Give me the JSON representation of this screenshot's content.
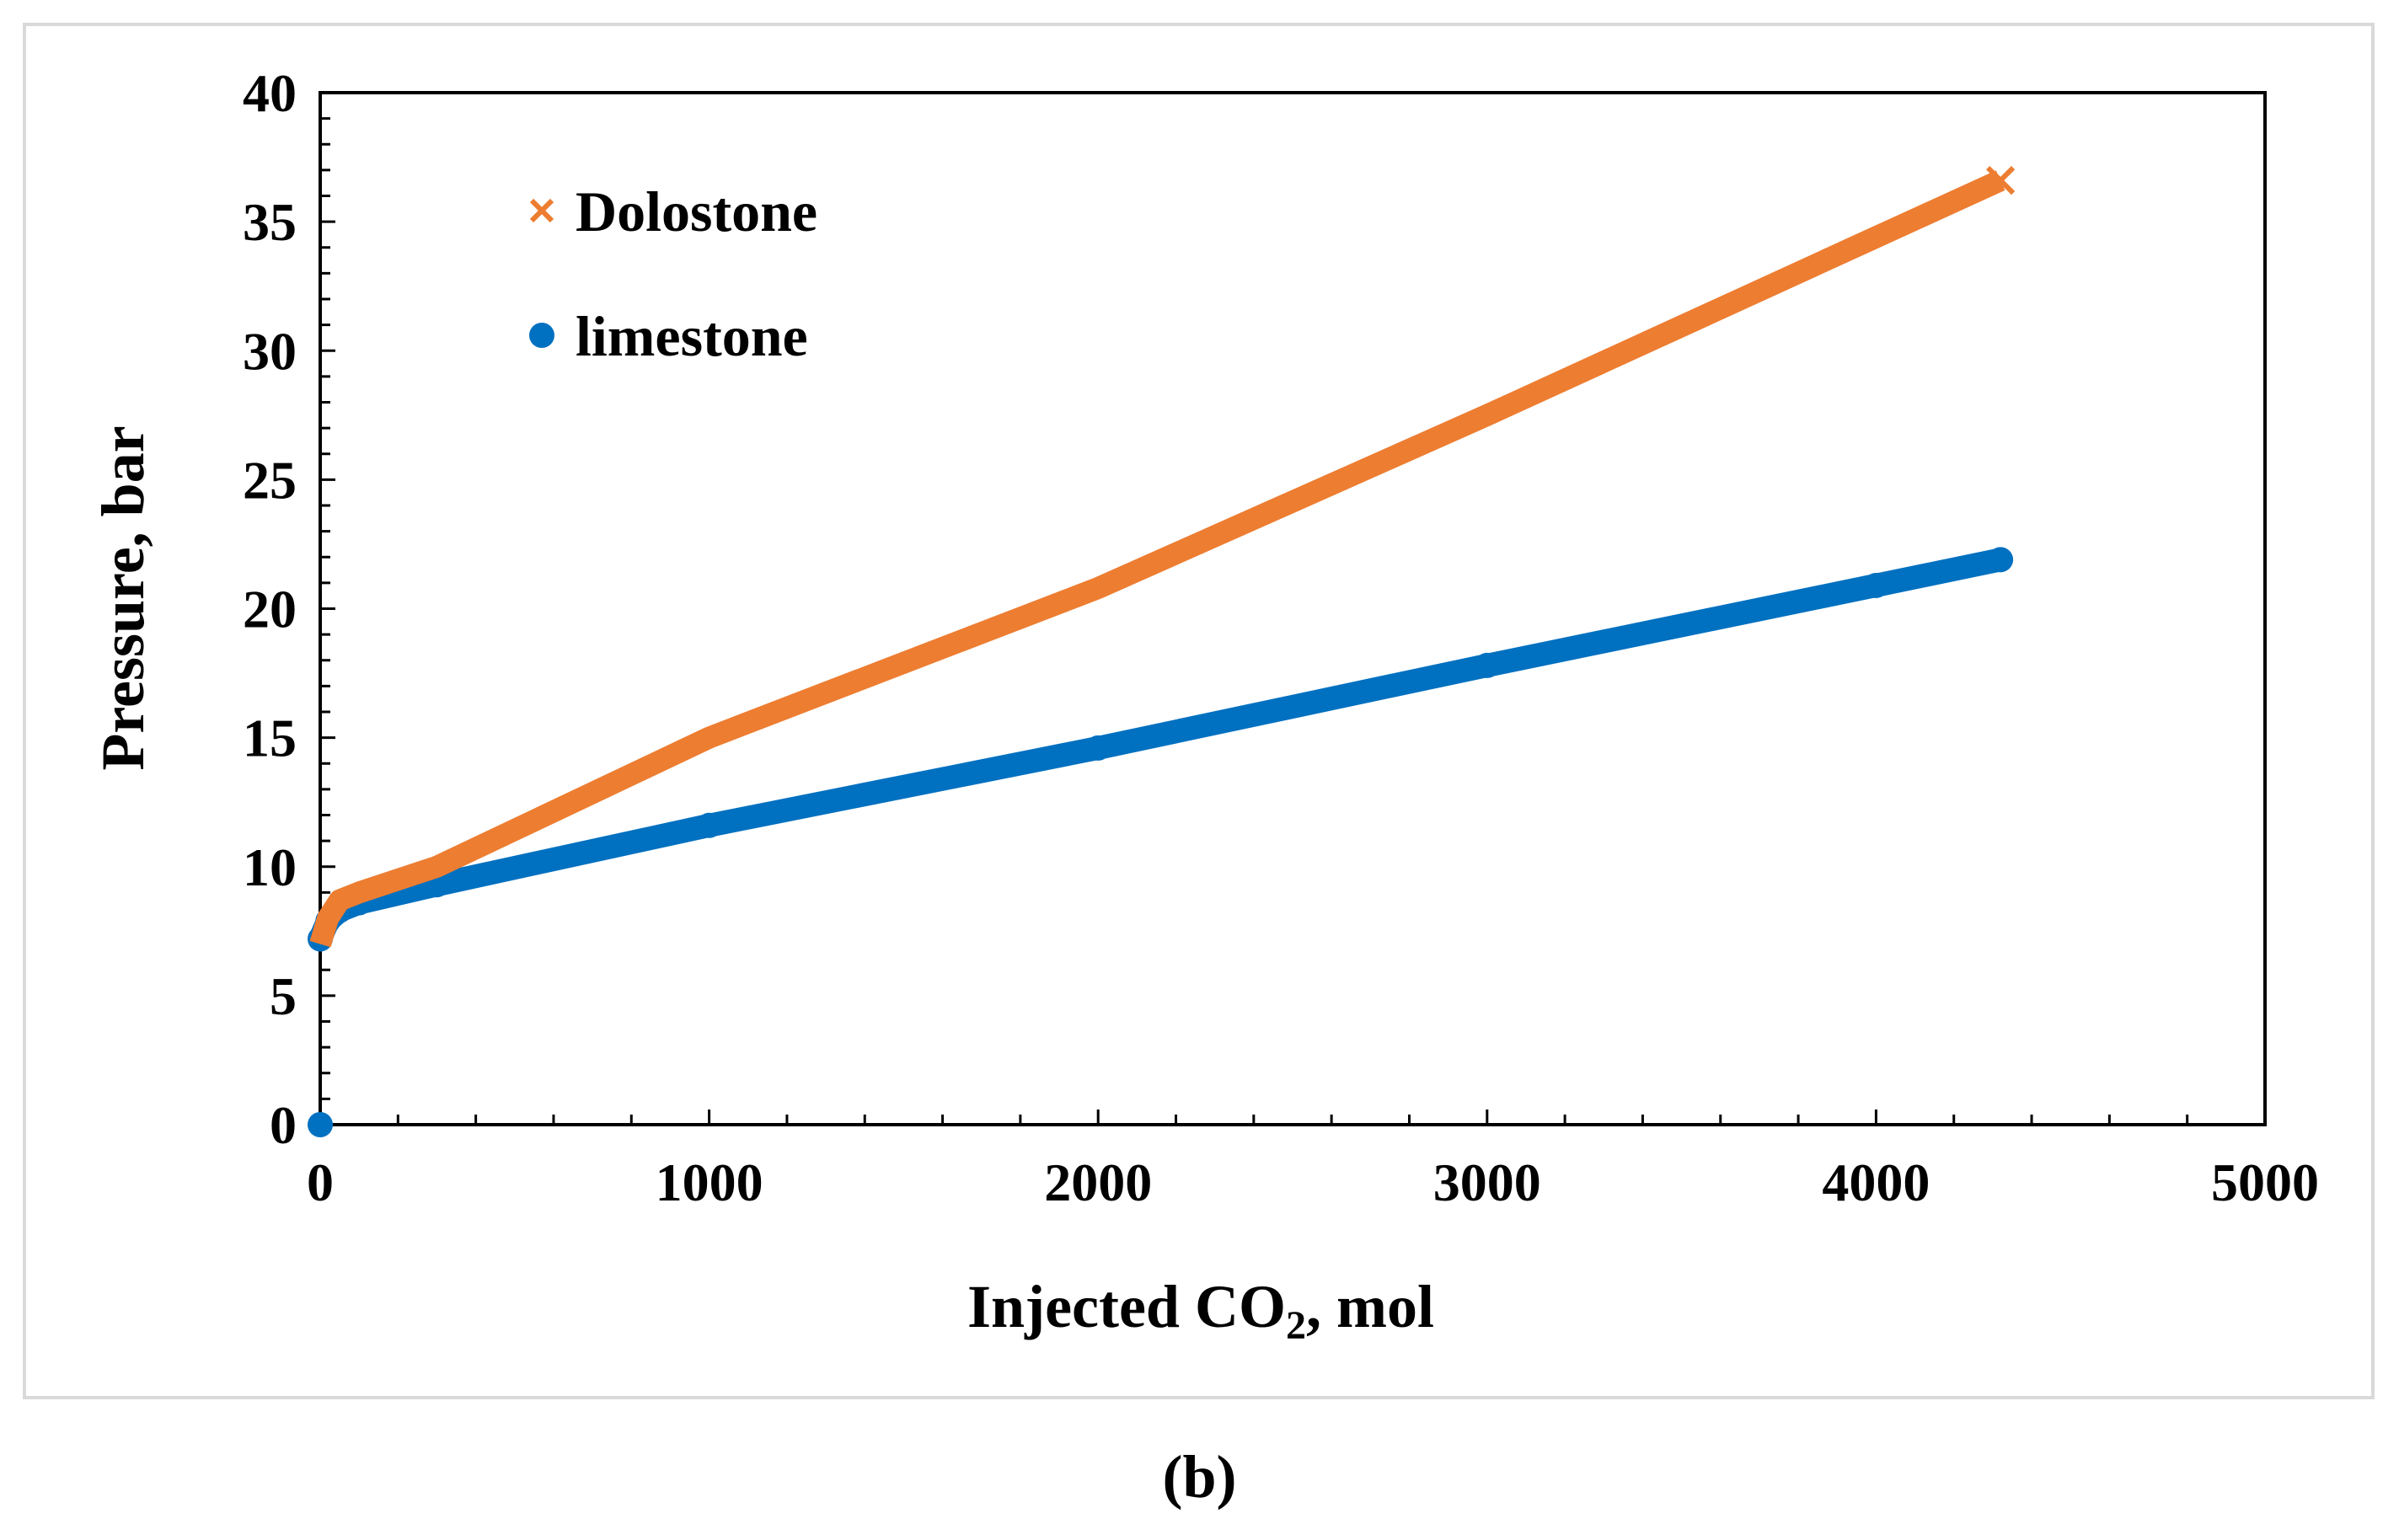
{
  "chart_data": {
    "type": "scatter",
    "title": "",
    "xlabel_main": "Injected CO",
    "xlabel_sub": "2",
    "xlabel_tail": ", mol",
    "ylabel": "Pressure, bar",
    "xlim": [
      0,
      5000
    ],
    "ylim": [
      0,
      40
    ],
    "x_major_ticks": [
      0,
      1000,
      2000,
      3000,
      4000,
      5000
    ],
    "y_major_ticks": [
      0,
      5,
      10,
      15,
      20,
      25,
      30,
      35,
      40
    ],
    "x_minor_step": 200,
    "y_minor_step": 1,
    "grid": false,
    "legend_position": "top-left",
    "series": [
      {
        "name": "Dolostone",
        "marker": "x",
        "color": "#ED7D31",
        "points": [
          [
            0,
            7.0
          ],
          [
            20,
            8.0
          ],
          [
            50,
            8.7
          ],
          [
            100,
            9.0
          ],
          [
            300,
            10.0
          ],
          [
            1000,
            15.0
          ],
          [
            2000,
            20.8
          ],
          [
            3000,
            27.5
          ],
          [
            4000,
            34.4
          ],
          [
            4320,
            36.6
          ]
        ]
      },
      {
        "name": "limestone",
        "marker": "circle",
        "color": "#0070C0",
        "points": [
          [
            0,
            0
          ],
          [
            0,
            7.2
          ],
          [
            20,
            7.9
          ],
          [
            50,
            8.3
          ],
          [
            100,
            8.6
          ],
          [
            300,
            9.3
          ],
          [
            1000,
            11.6
          ],
          [
            2000,
            14.6
          ],
          [
            3000,
            17.8
          ],
          [
            4000,
            20.9
          ],
          [
            4320,
            21.9
          ]
        ]
      }
    ]
  },
  "caption": "(b)"
}
